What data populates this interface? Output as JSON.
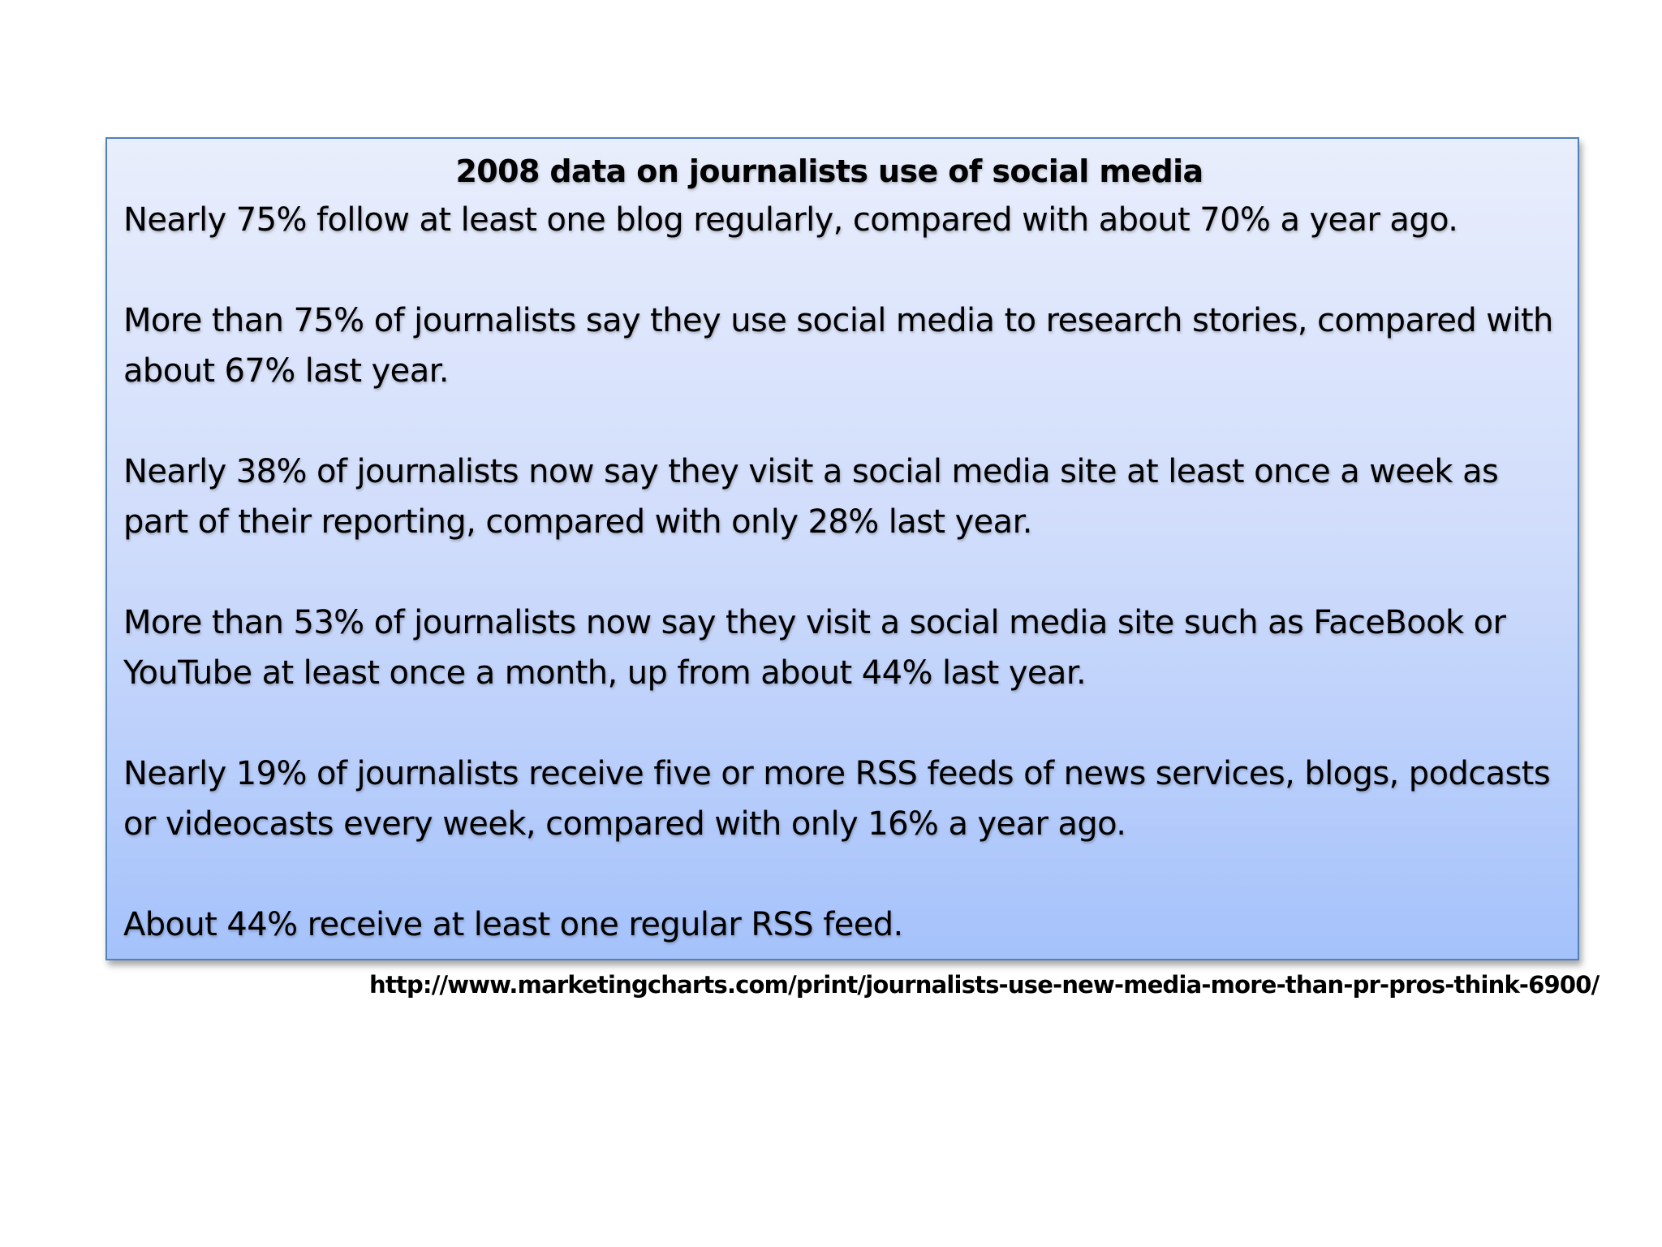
{
  "slide": {
    "title": "2008 data on journalists use of social media",
    "paragraphs": [
      "Nearly 75% follow at least one blog regularly, compared with about 70% a year ago.",
      "More than 75% of journalists say they use social media to research stories, compared with about 67% last year.",
      "Nearly 38% of journalists now say they visit a social media site at least once a week as part of their reporting, compared with only 28% last year.",
      "More than 53% of journalists now say they visit a social media site such as FaceBook or YouTube at least once a month, up from about 44% last year.",
      "Nearly 19% of journalists receive five or more RSS feeds of news services, blogs, podcasts or videocasts every week, compared with only 16% a year ago.",
      "About 44% receive at least one regular RSS feed."
    ],
    "source_url": "http://www.marketingcharts.com/print/journalists-use-new-media-more-than-pr-pros-think-6900/"
  },
  "colors": {
    "panel_border": "#4f81bd",
    "panel_gradient_top": "#e9eefc",
    "panel_gradient_bottom": "#a5c2fb",
    "text": "#000000"
  }
}
